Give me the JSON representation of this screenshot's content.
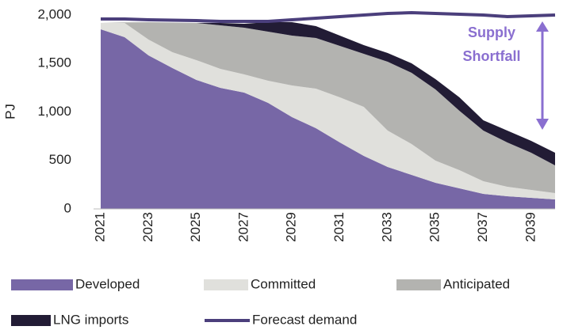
{
  "chart_data": {
    "type": "stacked_area_line",
    "y_label": "PJ",
    "annotation": [
      "Supply",
      "Shortfall"
    ],
    "annotation_color": "#8a6fd0",
    "x": [
      2021,
      2022,
      2023,
      2024,
      2025,
      2026,
      2027,
      2028,
      2029,
      2030,
      2031,
      2032,
      2033,
      2034,
      2035,
      2036,
      2037,
      2038,
      2039,
      2040
    ],
    "xlim": [
      2021,
      2040
    ],
    "xticks": [
      2021,
      2023,
      2025,
      2027,
      2029,
      2031,
      2033,
      2035,
      2037,
      2039
    ],
    "ylim": [
      0,
      2000
    ],
    "yticks": [
      0,
      500,
      {
        "value": 1000,
        "label": "1,000"
      },
      {
        "value": 1500,
        "label": "1,500"
      },
      {
        "value": 2000,
        "label": "2,000"
      }
    ],
    "series": [
      {
        "name": "Developed",
        "color": "#7767a6",
        "kind": "area",
        "values": [
          1853,
          1771,
          1584,
          1453,
          1331,
          1249,
          1200,
          1094,
          947,
          833,
          686,
          547,
          433,
          351,
          269,
          212,
          155,
          131,
          114,
          98
        ]
      },
      {
        "name": "Committed",
        "color": "#e0e0dc",
        "kind": "area",
        "values": [
          65,
          147,
          163,
          163,
          204,
          196,
          188,
          228,
          326,
          408,
          465,
          506,
          375,
          318,
          229,
          188,
          131,
          98,
          82,
          65
        ]
      },
      {
        "name": "Anticipated",
        "color": "#b3b3b0",
        "kind": "area",
        "values": [
          0,
          7,
          180,
          306,
          383,
          449,
          481,
          507,
          515,
          522,
          531,
          547,
          710,
          735,
          735,
          612,
          522,
          457,
          384,
          286
        ]
      },
      {
        "name": "LNG imports",
        "color": "#221c35",
        "kind": "area",
        "values": [
          0,
          0,
          0,
          0,
          0,
          24,
          41,
          98,
          139,
          123,
          106,
          90,
          90,
          98,
          106,
          139,
          106,
          122,
          122,
          131
        ]
      },
      {
        "name": "Forecast demand",
        "color": "#4b3f7c",
        "kind": "line",
        "values": [
          1959,
          1959,
          1951,
          1947,
          1943,
          1935,
          1935,
          1935,
          1951,
          1967,
          1984,
          2000,
          2016,
          2024,
          2016,
          2008,
          2000,
          1984,
          1992,
          2000
        ]
      }
    ]
  }
}
